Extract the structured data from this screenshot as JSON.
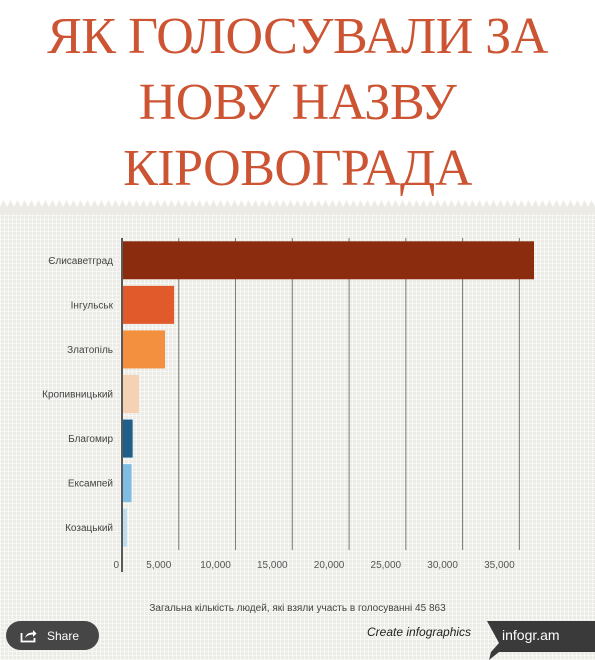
{
  "title_lines": [
    "ЯК ГОЛОСУВАЛИ ЗА",
    "НОВУ НАЗВУ",
    "КІРОВОГРАДА"
  ],
  "chart_data": {
    "type": "bar",
    "orientation": "horizontal",
    "categories": [
      "Єлисаветград",
      "Інгульськ",
      "Златопіль",
      "Кропивницький",
      "Благомир",
      "Ексампей",
      "Козацький"
    ],
    "values": [
      36200,
      4500,
      3700,
      1400,
      850,
      750,
      350
    ],
    "colors": [
      "#8c2c0e",
      "#e05a2b",
      "#f29040",
      "#f6d2b5",
      "#1d5e8a",
      "#7fbde3",
      "#bcdcf0"
    ],
    "xticks": [
      0,
      5000,
      10000,
      15000,
      20000,
      25000,
      30000,
      35000
    ],
    "xtick_labels": [
      "0",
      "5,000",
      "10,000",
      "15,000",
      "20,000",
      "25,000",
      "30,000",
      "35,000"
    ],
    "xlim": [
      0,
      36200
    ],
    "grid": "vertical"
  },
  "footnote": "Загальна кількість людей, які взяли участь в голосуванні 45 863",
  "share": {
    "label": "Share",
    "icon": "share-icon"
  },
  "create_link": "Create infographics",
  "brand": "infogr.am"
}
